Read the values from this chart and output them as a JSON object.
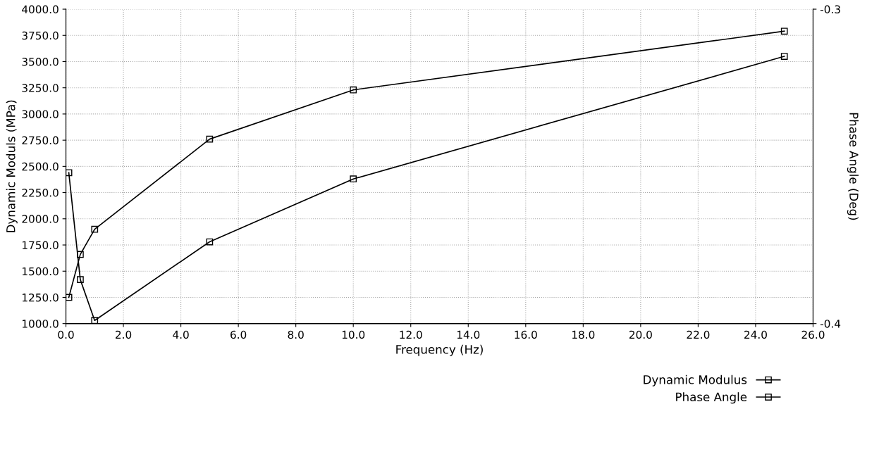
{
  "chart_data": {
    "type": "line",
    "xlabel": "Frequency (Hz)",
    "ylabel": "Dynamic Moduls (MPa)",
    "y2label": "Phase Angle (Deg)",
    "x": [
      0.1,
      0.5,
      1,
      5,
      10,
      25
    ],
    "series": [
      {
        "name": "Dynamic Modulus",
        "color": "#000000",
        "values": [
          1250,
          1660,
          1900,
          2760,
          3230,
          3790
        ]
      },
      {
        "name": "Phase Angle",
        "color": "#000000",
        "axis": "y2",
        "values": [
          -0.352,
          -0.386,
          -0.399,
          -0.374,
          -0.354,
          -0.315
        ]
      }
    ],
    "xlim": [
      0,
      26
    ],
    "xticks": [
      {
        "value": 0,
        "label": "0.0"
      },
      {
        "value": 2,
        "label": "2.0"
      },
      {
        "value": 4,
        "label": "4.0"
      },
      {
        "value": 6,
        "label": "6.0"
      },
      {
        "value": 8,
        "label": "8.0"
      },
      {
        "value": 10,
        "label": "10.0"
      },
      {
        "value": 12,
        "label": "12.0"
      },
      {
        "value": 14,
        "label": "14.0"
      },
      {
        "value": 16,
        "label": "16.0"
      },
      {
        "value": 18,
        "label": "18.0"
      },
      {
        "value": 20,
        "label": "20.0"
      },
      {
        "value": 22,
        "label": "22.0"
      },
      {
        "value": 24,
        "label": "24.0"
      },
      {
        "value": 26,
        "label": "26.0"
      }
    ],
    "ylim": [
      1000,
      4000
    ],
    "yticks": [
      {
        "value": 1000,
        "label": "1000.0"
      },
      {
        "value": 1250,
        "label": "1250.0"
      },
      {
        "value": 1500,
        "label": "1500.0"
      },
      {
        "value": 1750,
        "label": "1750.0"
      },
      {
        "value": 2000,
        "label": "2000.0"
      },
      {
        "value": 2250,
        "label": "2250.0"
      },
      {
        "value": 2500,
        "label": "2500.0"
      },
      {
        "value": 2750,
        "label": "2750.0"
      },
      {
        "value": 3000,
        "label": "3000.0"
      },
      {
        "value": 3250,
        "label": "3250.0"
      },
      {
        "value": 3500,
        "label": "3500.0"
      },
      {
        "value": 3750,
        "label": "3750.0"
      },
      {
        "value": 4000,
        "label": "4000.0"
      }
    ],
    "y2lim": [
      -0.4,
      -0.3
    ],
    "y2ticks": [
      -0.4,
      -0.3
    ],
    "grid": true,
    "legend": "bottom right",
    "marker": "square",
    "line_style": "solid"
  }
}
